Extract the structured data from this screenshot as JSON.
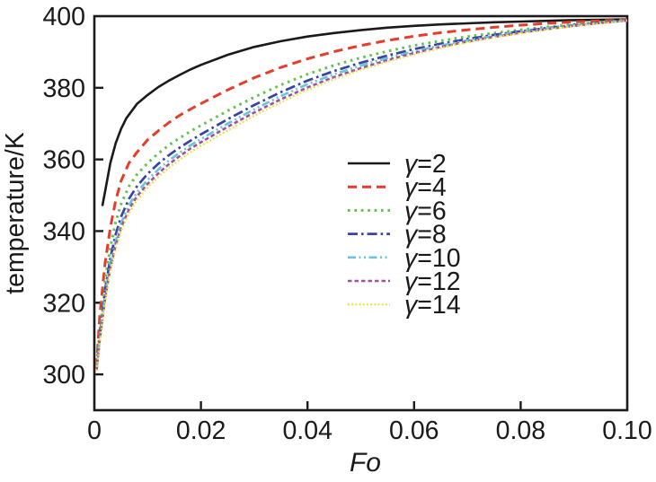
{
  "figure": {
    "background": "#ffffff",
    "axis_color": "#1a1a1a"
  },
  "chart_data": {
    "type": "line",
    "title": "",
    "xlabel": "Fo",
    "ylabel": "temperature/K",
    "xlim": [
      0,
      0.1
    ],
    "ylim": [
      290,
      400
    ],
    "xticks": [
      0,
      0.02,
      0.04,
      0.06,
      0.08,
      0.1
    ],
    "xtick_labels": [
      "0",
      "0.02",
      "0.04",
      "0.06",
      "0.08",
      "0.10"
    ],
    "yticks": [
      300,
      320,
      340,
      360,
      380,
      400
    ],
    "ytick_labels": [
      "300",
      "320",
      "340",
      "360",
      "380",
      "400"
    ],
    "grid": false,
    "legend_position": "inside right-center",
    "series": [
      {
        "name": "γ=2",
        "color": "#1a1a1a",
        "dash": "",
        "width": 2.6,
        "points": [
          [
            0.0015,
            347
          ],
          [
            0.002,
            351
          ],
          [
            0.003,
            359
          ],
          [
            0.004,
            364.5
          ],
          [
            0.005,
            368.5
          ],
          [
            0.006,
            371.5
          ],
          [
            0.008,
            375.5
          ],
          [
            0.01,
            378
          ],
          [
            0.012,
            380.2
          ],
          [
            0.014,
            382
          ],
          [
            0.016,
            383.6
          ],
          [
            0.018,
            385.1
          ],
          [
            0.02,
            386.4
          ],
          [
            0.025,
            389.2
          ],
          [
            0.03,
            391.4
          ],
          [
            0.035,
            393
          ],
          [
            0.04,
            394.3
          ],
          [
            0.045,
            395.3
          ],
          [
            0.05,
            396.1
          ],
          [
            0.055,
            396.8
          ],
          [
            0.06,
            397.3
          ],
          [
            0.065,
            397.7
          ],
          [
            0.07,
            398
          ],
          [
            0.075,
            398.3
          ],
          [
            0.08,
            398.5
          ],
          [
            0.085,
            398.7
          ],
          [
            0.09,
            398.9
          ],
          [
            0.095,
            399
          ],
          [
            0.1,
            399.1
          ]
        ]
      },
      {
        "name": "γ=4",
        "color": "#e63c2a",
        "dash": "10 6",
        "width": 3,
        "points": [
          [
            0.0004,
            302
          ],
          [
            0.001,
            316
          ],
          [
            0.002,
            331
          ],
          [
            0.003,
            341
          ],
          [
            0.004,
            348.5
          ],
          [
            0.005,
            354
          ],
          [
            0.0065,
            359
          ],
          [
            0.008,
            362
          ],
          [
            0.01,
            365.5
          ],
          [
            0.012,
            368
          ],
          [
            0.014,
            370.3
          ],
          [
            0.016,
            372.3
          ],
          [
            0.018,
            374
          ],
          [
            0.02,
            375.6
          ],
          [
            0.025,
            379.4
          ],
          [
            0.03,
            382.8
          ],
          [
            0.035,
            385.7
          ],
          [
            0.04,
            388.1
          ],
          [
            0.045,
            390.1
          ],
          [
            0.05,
            391.8
          ],
          [
            0.055,
            393.2
          ],
          [
            0.06,
            394.4
          ],
          [
            0.065,
            395.4
          ],
          [
            0.07,
            396.2
          ],
          [
            0.075,
            396.9
          ],
          [
            0.08,
            397.5
          ],
          [
            0.085,
            398
          ],
          [
            0.09,
            398.4
          ],
          [
            0.095,
            398.7
          ],
          [
            0.1,
            399
          ]
        ]
      },
      {
        "name": "γ=6",
        "color": "#62c34c",
        "dash": "2.6 4.8",
        "width": 3,
        "points": [
          [
            0.0004,
            301.5
          ],
          [
            0.001,
            312
          ],
          [
            0.002,
            326
          ],
          [
            0.003,
            335.5
          ],
          [
            0.004,
            342.5
          ],
          [
            0.005,
            347.5
          ],
          [
            0.0065,
            352.5
          ],
          [
            0.008,
            355.8
          ],
          [
            0.01,
            359
          ],
          [
            0.012,
            361.7
          ],
          [
            0.014,
            364
          ],
          [
            0.016,
            366
          ],
          [
            0.018,
            367.8
          ],
          [
            0.02,
            369.5
          ],
          [
            0.025,
            373.6
          ],
          [
            0.03,
            377.4
          ],
          [
            0.035,
            380.8
          ],
          [
            0.04,
            383.8
          ],
          [
            0.045,
            386.3
          ],
          [
            0.05,
            388.4
          ],
          [
            0.055,
            390.2
          ],
          [
            0.06,
            391.8
          ],
          [
            0.065,
            393.1
          ],
          [
            0.07,
            394.3
          ],
          [
            0.075,
            395.3
          ],
          [
            0.08,
            396.2
          ],
          [
            0.085,
            397
          ],
          [
            0.09,
            397.7
          ],
          [
            0.095,
            398.3
          ],
          [
            0.1,
            398.9
          ]
        ]
      },
      {
        "name": "γ=8",
        "color": "#3c41a5",
        "dash": "11 4 2.6 4",
        "width": 2.7,
        "points": [
          [
            0.0004,
            301.3
          ],
          [
            0.001,
            310.5
          ],
          [
            0.002,
            323.5
          ],
          [
            0.003,
            332.5
          ],
          [
            0.004,
            339
          ],
          [
            0.005,
            344
          ],
          [
            0.0065,
            349
          ],
          [
            0.008,
            352.5
          ],
          [
            0.01,
            356
          ],
          [
            0.012,
            358.8
          ],
          [
            0.014,
            361.2
          ],
          [
            0.016,
            363.3
          ],
          [
            0.018,
            365.2
          ],
          [
            0.02,
            367
          ],
          [
            0.025,
            371.2
          ],
          [
            0.03,
            375.2
          ],
          [
            0.035,
            378.8
          ],
          [
            0.04,
            382
          ],
          [
            0.045,
            384.7
          ],
          [
            0.05,
            387
          ],
          [
            0.055,
            389
          ],
          [
            0.06,
            390.8
          ],
          [
            0.065,
            392.3
          ],
          [
            0.07,
            393.6
          ],
          [
            0.075,
            394.8
          ],
          [
            0.08,
            395.8
          ],
          [
            0.085,
            396.7
          ],
          [
            0.09,
            397.5
          ],
          [
            0.095,
            398.2
          ],
          [
            0.1,
            398.8
          ]
        ]
      },
      {
        "name": "γ=10",
        "color": "#68c6da",
        "dash": "9 3.5 2 3.5 2 3.5",
        "width": 2.7,
        "points": [
          [
            0.0004,
            301.2
          ],
          [
            0.001,
            309.8
          ],
          [
            0.002,
            322
          ],
          [
            0.003,
            330.8
          ],
          [
            0.004,
            337.2
          ],
          [
            0.005,
            342.2
          ],
          [
            0.0065,
            347.2
          ],
          [
            0.008,
            350.8
          ],
          [
            0.01,
            354.3
          ],
          [
            0.012,
            357.2
          ],
          [
            0.014,
            359.7
          ],
          [
            0.016,
            361.9
          ],
          [
            0.018,
            363.9
          ],
          [
            0.02,
            365.7
          ],
          [
            0.025,
            370
          ],
          [
            0.03,
            374
          ],
          [
            0.035,
            377.7
          ],
          [
            0.04,
            381
          ],
          [
            0.045,
            383.8
          ],
          [
            0.05,
            386.2
          ],
          [
            0.055,
            388.3
          ],
          [
            0.06,
            390.2
          ],
          [
            0.065,
            391.8
          ],
          [
            0.07,
            393.2
          ],
          [
            0.075,
            394.5
          ],
          [
            0.08,
            395.6
          ],
          [
            0.085,
            396.6
          ],
          [
            0.09,
            397.4
          ],
          [
            0.095,
            398.1
          ],
          [
            0.1,
            398.8
          ]
        ]
      },
      {
        "name": "γ=12",
        "color": "#a0509f",
        "dash": "4.5 3",
        "width": 2.6,
        "points": [
          [
            0.0004,
            301.1
          ],
          [
            0.001,
            309.2
          ],
          [
            0.002,
            321
          ],
          [
            0.003,
            329.7
          ],
          [
            0.004,
            336
          ],
          [
            0.005,
            341
          ],
          [
            0.0065,
            346
          ],
          [
            0.008,
            349.7
          ],
          [
            0.01,
            353.2
          ],
          [
            0.012,
            356.1
          ],
          [
            0.014,
            358.7
          ],
          [
            0.016,
            360.9
          ],
          [
            0.018,
            363
          ],
          [
            0.02,
            364.8
          ],
          [
            0.025,
            369.1
          ],
          [
            0.03,
            373.1
          ],
          [
            0.035,
            376.8
          ],
          [
            0.04,
            380.1
          ],
          [
            0.045,
            383
          ],
          [
            0.05,
            385.5
          ],
          [
            0.055,
            387.7
          ],
          [
            0.06,
            389.7
          ],
          [
            0.065,
            391.4
          ],
          [
            0.07,
            392.9
          ],
          [
            0.075,
            394.2
          ],
          [
            0.08,
            395.4
          ],
          [
            0.085,
            396.4
          ],
          [
            0.09,
            397.3
          ],
          [
            0.095,
            398.1
          ],
          [
            0.1,
            398.8
          ]
        ]
      },
      {
        "name": "γ=14",
        "color": "#e9e23c",
        "dash": "1.8 2.4",
        "width": 2.3,
        "points": [
          [
            0.0004,
            301
          ],
          [
            0.001,
            308.7
          ],
          [
            0.002,
            320.2
          ],
          [
            0.003,
            328.8
          ],
          [
            0.004,
            335
          ],
          [
            0.005,
            340
          ],
          [
            0.0065,
            345
          ],
          [
            0.008,
            348.7
          ],
          [
            0.01,
            352.2
          ],
          [
            0.012,
            355.1
          ],
          [
            0.014,
            357.7
          ],
          [
            0.016,
            359.9
          ],
          [
            0.018,
            362
          ],
          [
            0.02,
            363.8
          ],
          [
            0.025,
            368.1
          ],
          [
            0.03,
            372.2
          ],
          [
            0.035,
            376
          ],
          [
            0.04,
            379.4
          ],
          [
            0.045,
            382.4
          ],
          [
            0.05,
            385
          ],
          [
            0.055,
            387.3
          ],
          [
            0.06,
            389.3
          ],
          [
            0.065,
            391.1
          ],
          [
            0.07,
            392.7
          ],
          [
            0.075,
            394
          ],
          [
            0.08,
            395.2
          ],
          [
            0.085,
            396.3
          ],
          [
            0.09,
            397.2
          ],
          [
            0.095,
            398
          ],
          [
            0.1,
            398.7
          ]
        ]
      }
    ]
  }
}
